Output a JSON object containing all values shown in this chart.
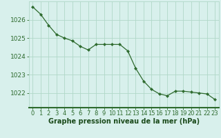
{
  "x": [
    0,
    1,
    2,
    3,
    4,
    5,
    6,
    7,
    8,
    9,
    10,
    11,
    12,
    13,
    14,
    15,
    16,
    17,
    18,
    19,
    20,
    21,
    22,
    23
  ],
  "y": [
    1026.7,
    1026.3,
    1025.7,
    1025.2,
    1025.0,
    1024.85,
    1024.55,
    1024.35,
    1024.65,
    1024.65,
    1024.65,
    1024.65,
    1024.3,
    1023.35,
    1022.65,
    1022.2,
    1021.95,
    1021.85,
    1022.1,
    1022.1,
    1022.05,
    1022.0,
    1021.95,
    1021.65
  ],
  "line_color": "#2d6a2d",
  "marker": "D",
  "marker_size": 2.2,
  "bg_color": "#d8f0ec",
  "grid_color": "#b0d8c8",
  "xlabel": "Graphe pression niveau de la mer (hPa)",
  "xlabel_color": "#1a4a1a",
  "ylabel_ticks": [
    1022,
    1023,
    1024,
    1025,
    1026
  ],
  "ylim": [
    1021.2,
    1027.0
  ],
  "xlim": [
    -0.5,
    23.5
  ],
  "xtick_labels": [
    "0",
    "1",
    "2",
    "3",
    "4",
    "5",
    "6",
    "7",
    "8",
    "9",
    "10",
    "11",
    "12",
    "13",
    "14",
    "15",
    "16",
    "17",
    "18",
    "19",
    "20",
    "21",
    "22",
    "23"
  ],
  "tick_color": "#2d6a2d",
  "axis_label_fontsize": 6.5,
  "xlabel_fontsize": 7.0,
  "bottom_bar_color": "#2d6a2d"
}
